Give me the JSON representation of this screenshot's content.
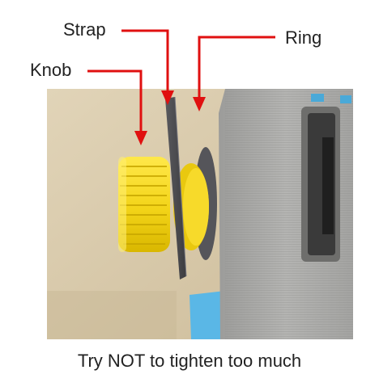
{
  "labels": {
    "strap": "Strap",
    "ring": "Ring",
    "knob": "Knob"
  },
  "caption": "Try NOT to tighten too much",
  "colors": {
    "arrow": "#e01010",
    "knob": "#f5d71a",
    "housing": "#a9a9a7",
    "background": "#d8c9ab"
  }
}
